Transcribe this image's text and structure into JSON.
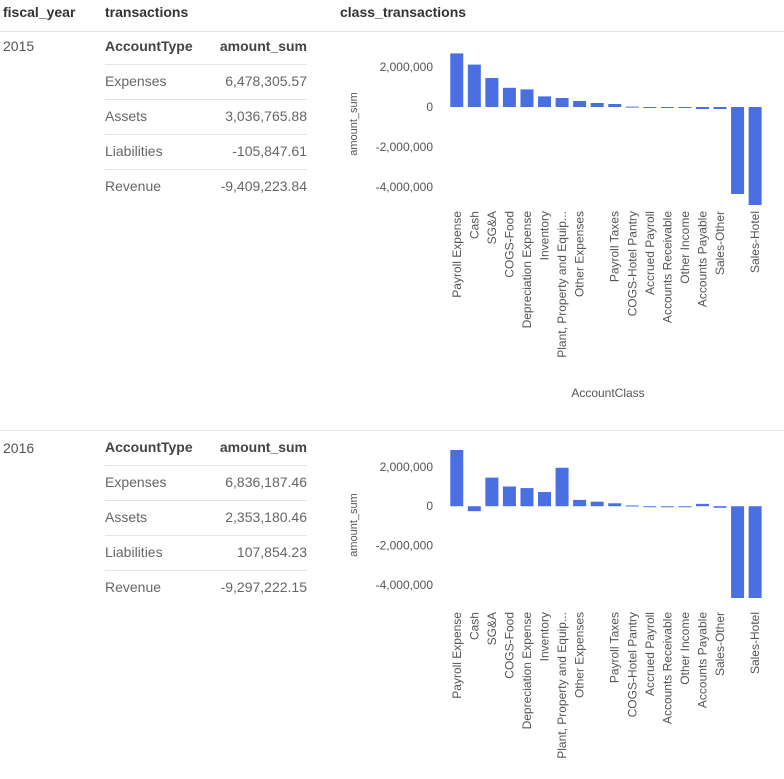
{
  "columns": [
    "fiscal_year",
    "transactions",
    "class_transactions"
  ],
  "rows": [
    {
      "fiscal_year": "2015",
      "transactions": {
        "headers": [
          "AccountType",
          "amount_sum"
        ],
        "rows": [
          [
            "Expenses",
            "6,478,305.57"
          ],
          [
            "Assets",
            "3,036,765.88"
          ],
          [
            "Liabilities",
            "-105,847.61"
          ],
          [
            "Revenue",
            "-9,409,223.84"
          ]
        ]
      }
    },
    {
      "fiscal_year": "2016",
      "transactions": {
        "headers": [
          "AccountType",
          "amount_sum"
        ],
        "rows": [
          [
            "Expenses",
            "6,836,187.46"
          ],
          [
            "Assets",
            "2,353,180.46"
          ],
          [
            "Liabilities",
            "107,854.23"
          ],
          [
            "Revenue",
            "-9,297,222.15"
          ]
        ]
      }
    }
  ],
  "chart_data": [
    {
      "type": "bar",
      "xlabel": "AccountClass",
      "ylabel": "amount_sum",
      "ylim": [
        -4900000,
        2900000
      ],
      "yticks": [
        2000000,
        0,
        -2000000,
        -4000000
      ],
      "ytick_labels": [
        "2,000,000",
        "0",
        "-2,000,000",
        "-4,000,000"
      ],
      "bar_color": "#4a6fe3",
      "categories": [
        "Payroll Expense",
        "Cash",
        "SG&A",
        "COGS-Food",
        "Depreciation Expense",
        "Inventory",
        "Plant, Property and Equip...",
        "Other Expenses",
        "Payroll Taxes",
        "COGS-Hotel Pantry",
        "Accrued Payroll",
        "Accounts Receivable",
        "Other Income",
        "Accounts Payable",
        "Sales-Other",
        "Sales-Hotel"
      ],
      "category_slots": [
        0,
        1,
        2,
        3,
        4,
        5,
        6,
        7,
        9,
        10,
        11,
        12,
        13,
        14,
        15,
        17
      ],
      "values": [
        2680000,
        2120000,
        1450000,
        960000,
        880000,
        530000,
        450000,
        300000,
        150000,
        20000,
        -10000,
        -20000,
        -40000,
        -100000,
        -100000,
        -4900000
      ],
      "extra_bars": [
        {
          "slot": 8,
          "value": 200000
        },
        {
          "slot": 16,
          "value": -4350000
        }
      ]
    },
    {
      "type": "bar",
      "xlabel": "",
      "ylabel": "amount_sum",
      "ylim": [
        -4650000,
        2900000
      ],
      "yticks": [
        2000000,
        0,
        -2000000,
        -4000000
      ],
      "ytick_labels": [
        "2,000,000",
        "0",
        "-2,000,000",
        "-4,000,000"
      ],
      "bar_color": "#4a6fe3",
      "categories": [
        "Payroll Expense",
        "Cash",
        "SG&A",
        "COGS-Food",
        "Depreciation Expense",
        "Inventory",
        "Plant, Property and Equip...",
        "Other Expenses",
        "Payroll Taxes",
        "COGS-Hotel Pantry",
        "Accrued Payroll",
        "Accounts Receivable",
        "Other Income",
        "Accounts Payable",
        "Sales-Other",
        "Sales-Hotel"
      ],
      "category_slots": [
        0,
        1,
        2,
        3,
        4,
        5,
        6,
        7,
        9,
        10,
        11,
        12,
        13,
        14,
        15,
        17
      ],
      "values": [
        2850000,
        -250000,
        1450000,
        1000000,
        920000,
        720000,
        1950000,
        320000,
        150000,
        40000,
        0,
        0,
        0,
        120000,
        -80000,
        -4650000
      ],
      "extra_bars": [
        {
          "slot": 8,
          "value": 230000
        },
        {
          "slot": 16,
          "value": -4650000
        }
      ]
    }
  ]
}
